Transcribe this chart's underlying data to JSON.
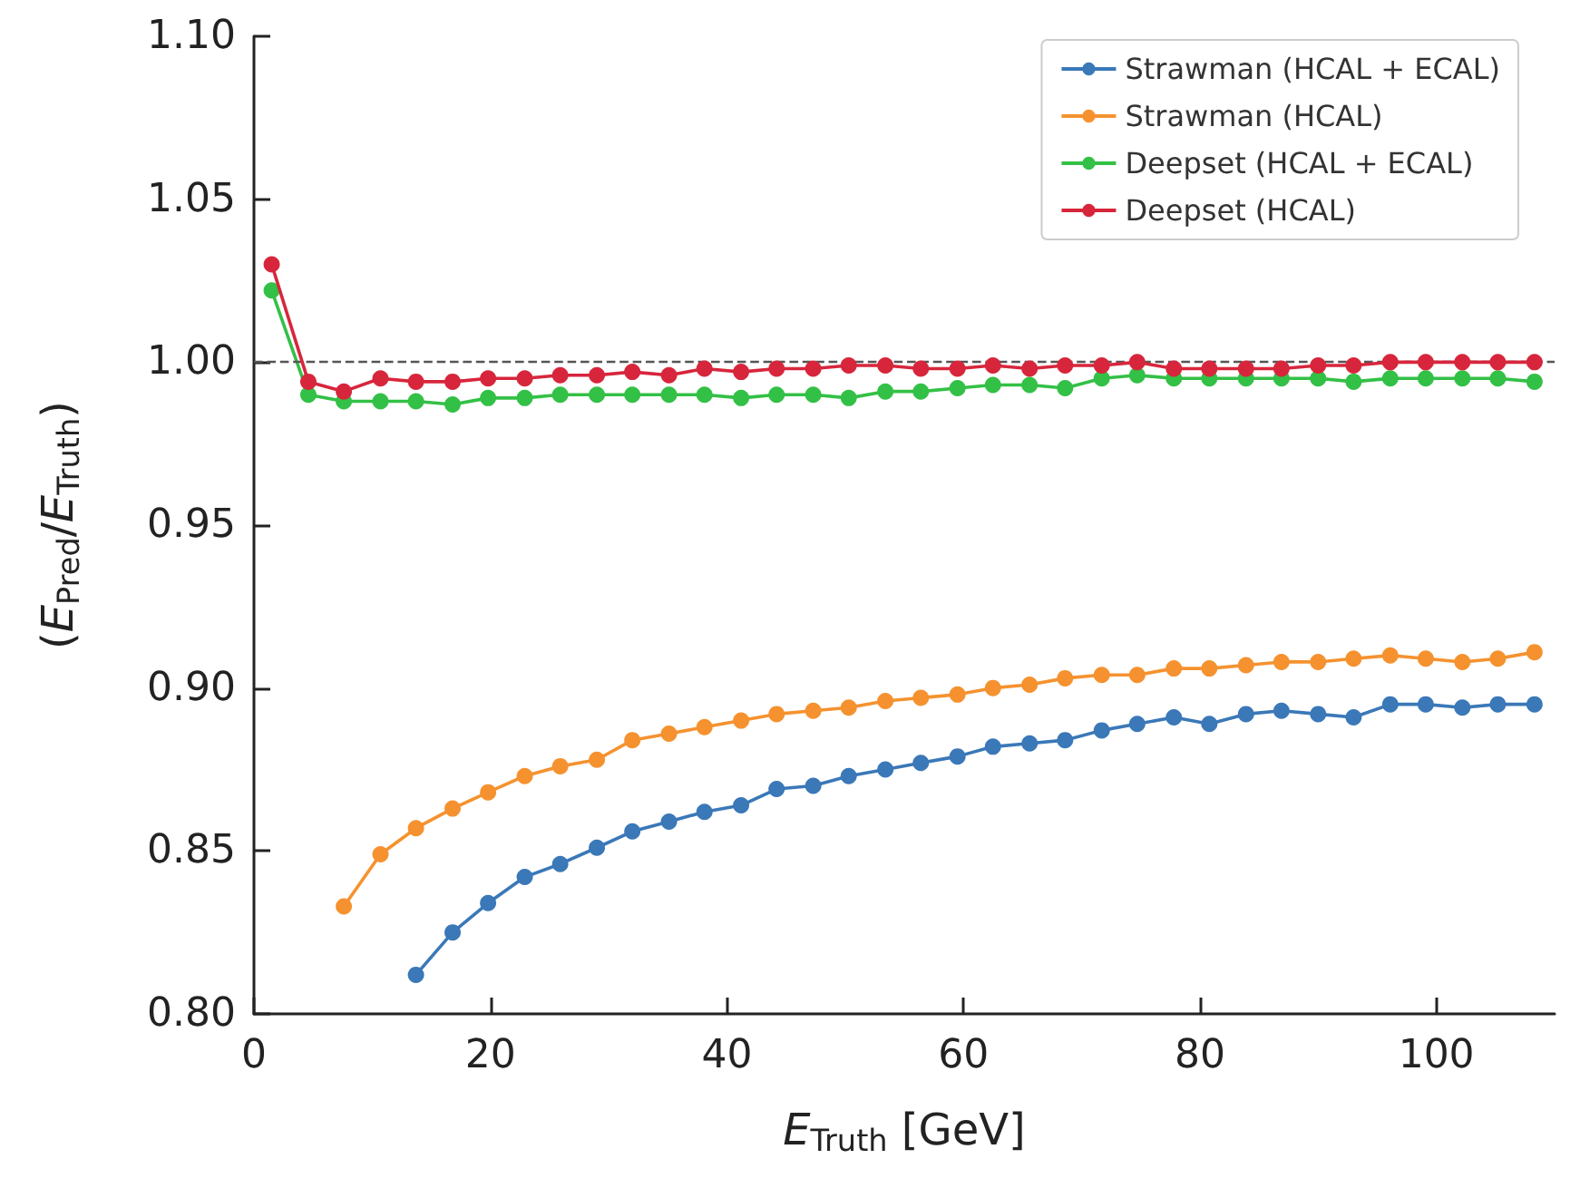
{
  "chart_data": {
    "type": "line",
    "xlabel": "E$_{Truth}$ [GeV]",
    "ylabel": "(E$_{Pred}$/E$_{Truth}$)",
    "x": [
      1.5,
      4.6,
      7.6,
      10.7,
      13.7,
      16.8,
      19.8,
      22.9,
      25.9,
      29.0,
      32.0,
      35.1,
      38.1,
      41.2,
      44.2,
      47.3,
      50.3,
      53.4,
      56.4,
      59.5,
      62.5,
      65.6,
      68.6,
      71.7,
      74.7,
      77.8,
      80.8,
      83.9,
      86.9,
      90.0,
      93.0,
      96.1,
      99.1,
      102.2,
      105.2,
      108.3
    ],
    "series": [
      {
        "name": "Strawman (HCAL + ECAL)",
        "color": "#3a78b8",
        "values": [
          null,
          null,
          null,
          null,
          0.812,
          0.825,
          0.834,
          0.842,
          0.846,
          0.851,
          0.856,
          0.859,
          0.862,
          0.864,
          0.869,
          0.87,
          0.873,
          0.875,
          0.877,
          0.879,
          0.882,
          0.883,
          0.884,
          0.887,
          0.889,
          0.891,
          0.889,
          0.892,
          0.893,
          0.892,
          0.891,
          0.895,
          0.895,
          0.894,
          0.895,
          0.895
        ]
      },
      {
        "name": "Strawman (HCAL)",
        "color": "#f5922f",
        "values": [
          null,
          null,
          0.833,
          0.849,
          0.857,
          0.863,
          0.868,
          0.873,
          0.876,
          0.878,
          0.884,
          0.886,
          0.888,
          0.89,
          0.892,
          0.893,
          0.894,
          0.896,
          0.897,
          0.898,
          0.9,
          0.901,
          0.903,
          0.904,
          0.904,
          0.906,
          0.906,
          0.907,
          0.908,
          0.908,
          0.909,
          0.91,
          0.909,
          0.908,
          0.909,
          0.911
        ]
      },
      {
        "name": "Deepset (HCAL + ECAL)",
        "color": "#33c046",
        "values": [
          1.022,
          0.99,
          0.988,
          0.988,
          0.988,
          0.987,
          0.989,
          0.989,
          0.99,
          0.99,
          0.99,
          0.99,
          0.99,
          0.989,
          0.99,
          0.99,
          0.989,
          0.991,
          0.991,
          0.992,
          0.993,
          0.993,
          0.992,
          0.995,
          0.996,
          0.995,
          0.995,
          0.995,
          0.995,
          0.995,
          0.994,
          0.995,
          0.995,
          0.995,
          0.995,
          0.994
        ]
      },
      {
        "name": "Deepset (HCAL)",
        "color": "#d7263c",
        "values": [
          1.03,
          0.994,
          0.991,
          0.995,
          0.994,
          0.994,
          0.995,
          0.995,
          0.996,
          0.996,
          0.997,
          0.996,
          0.998,
          0.997,
          0.998,
          0.998,
          0.999,
          0.999,
          0.998,
          0.998,
          0.999,
          0.998,
          0.999,
          0.999,
          1.0,
          0.998,
          0.998,
          0.998,
          0.998,
          0.999,
          0.999,
          1.0,
          1.0,
          1.0,
          1.0,
          1.0
        ]
      }
    ],
    "xlim": [
      0,
      110
    ],
    "xticks": [
      0,
      20,
      40,
      60,
      80,
      100
    ],
    "ylim": [
      0.8,
      1.1
    ],
    "yticks": [
      {
        "value": 0.8,
        "label": "0.80"
      },
      {
        "value": 0.85,
        "label": "0.85"
      },
      {
        "value": 0.9,
        "label": "0.90"
      },
      {
        "value": 0.95,
        "label": "0.95"
      },
      {
        "value": 1.0,
        "label": "1.00"
      },
      {
        "value": 1.05,
        "label": "1.05"
      },
      {
        "value": 1.1,
        "label": "1.10"
      }
    ],
    "ref_lines": [
      {
        "axis": "y",
        "value": 1.0,
        "color": "#555555",
        "line_style": "dashed"
      }
    ],
    "grid": false,
    "legend": "top right",
    "marker": "circle",
    "line_style": "solid"
  }
}
